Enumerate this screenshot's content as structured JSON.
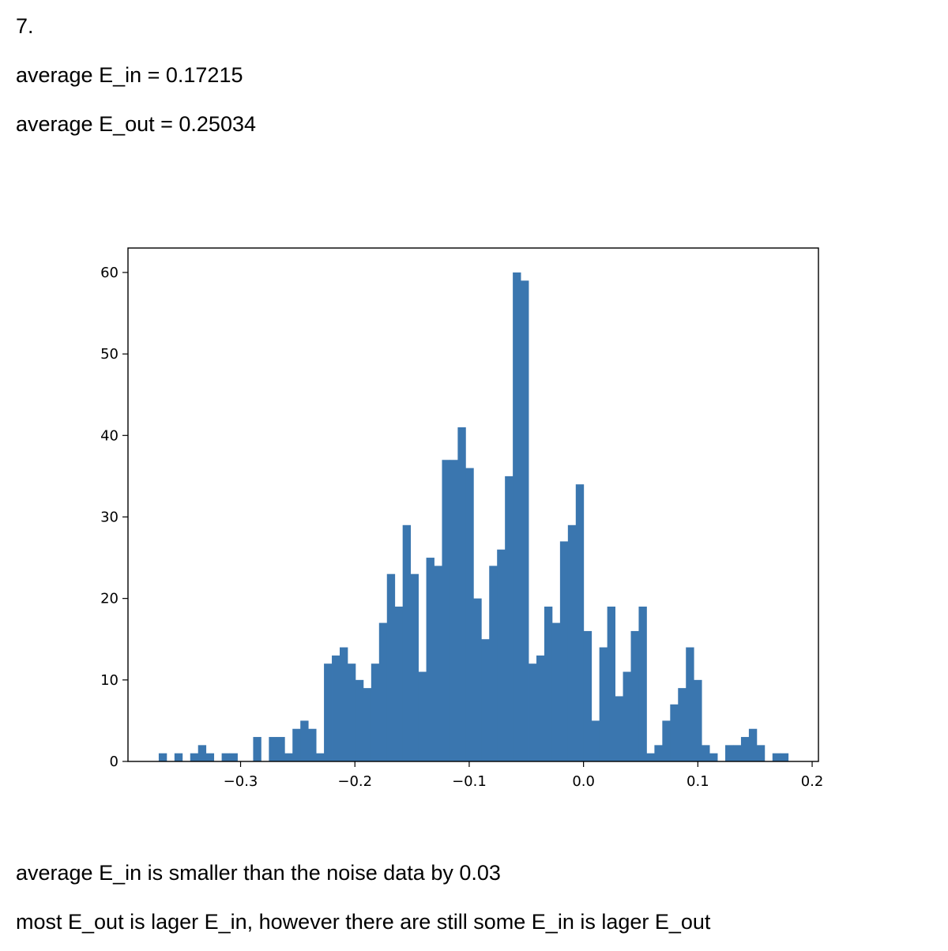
{
  "heading": "7.",
  "results": {
    "ein_line": "average E_in = 0.17215",
    "eout_line": "average E_out = 0.25034"
  },
  "conclusion": {
    "line1": "average E_in is smaller than the noise data by 0.03",
    "line2": "most E_out is lager E_in, however there are still some E_in is lager E_out"
  },
  "chart_data": {
    "type": "bar",
    "title": "",
    "xlabel": "",
    "ylabel": "",
    "bar_color": "#3a76af",
    "xlim": [
      -0.3985,
      0.2055
    ],
    "ylim": [
      0,
      63
    ],
    "xticks": [
      {
        "value": -0.3,
        "label": "−0.3"
      },
      {
        "value": -0.2,
        "label": "−0.2"
      },
      {
        "value": -0.1,
        "label": "−0.1"
      },
      {
        "value": 0.0,
        "label": "0.0"
      },
      {
        "value": 0.1,
        "label": "0.1"
      },
      {
        "value": 0.2,
        "label": "0.2"
      }
    ],
    "yticks": [
      0,
      10,
      20,
      30,
      40,
      50,
      60
    ],
    "bin_start": -0.3716,
    "bin_width": 0.006883,
    "counts": [
      1,
      0,
      1,
      0,
      1,
      2,
      1,
      0,
      1,
      1,
      0,
      0,
      3,
      0,
      3,
      3,
      1,
      4,
      5,
      4,
      1,
      12,
      13,
      14,
      12,
      10,
      9,
      12,
      17,
      23,
      19,
      29,
      23,
      11,
      25,
      24,
      37,
      37,
      41,
      36,
      20,
      15,
      24,
      26,
      35,
      60,
      59,
      12,
      13,
      19,
      17,
      27,
      29,
      34,
      16,
      5,
      14,
      19,
      8,
      11,
      16,
      19,
      1,
      2,
      5,
      7,
      9,
      14,
      10,
      2,
      1,
      0,
      2,
      2,
      3,
      4,
      2,
      0,
      1,
      1
    ]
  }
}
